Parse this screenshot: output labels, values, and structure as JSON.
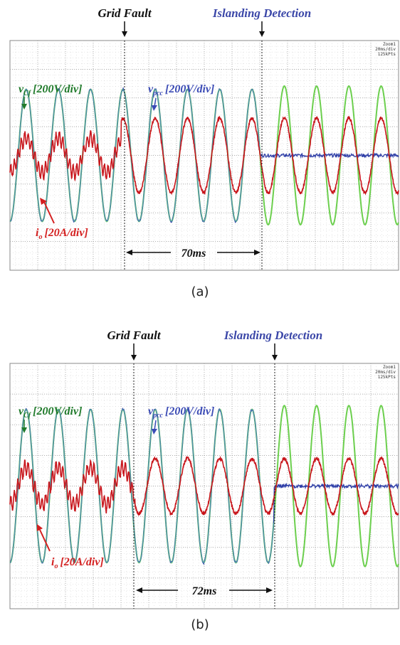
{
  "colors": {
    "grid_fault": "#111111",
    "islanding": "#3b47a8",
    "v_cf": "#1f7a2a",
    "v_pcc": "#3b4bb5",
    "i_o": "#d42020",
    "v_cf_trace": "#6ccf4e",
    "v_pcc_trace": "#2f3fa8",
    "i_o_trace": "#c8161c"
  },
  "chart_data": [
    {
      "type": "line",
      "panel_caption": "(a)",
      "scope_info": [
        "Zoom1",
        "20ms/div",
        "125kPts"
      ],
      "events": {
        "grid_fault": {
          "label": "Grid Fault",
          "t_div": 4.0
        },
        "islanding_detection": {
          "label": "Islanding Detection",
          "t_div": 9.0
        }
      },
      "duration_label": "70ms",
      "signals": [
        {
          "name": "v_Cf",
          "sub": "Cf",
          "base": "v",
          "label_rest": "[200V/div]",
          "amplitude_div": 2.3
        },
        {
          "name": "v_pcc",
          "sub": "pcc",
          "base": "v",
          "label_rest": "[200V/div]",
          "amplitude_div": 2.3,
          "after_islanding_div": 0.0
        },
        {
          "name": "i_o",
          "sub": "o",
          "base": "i",
          "label_rest": "[20A/div]",
          "amplitude_div_pre": 0.6,
          "amplitude_div_post": 1.3
        }
      ],
      "x_divisions": 14,
      "y_divisions": 8,
      "cycles_per_div": 0.86
    },
    {
      "type": "line",
      "panel_caption": "(b)",
      "scope_info": [
        "Zoom1",
        "20ms/div",
        "125kPts"
      ],
      "events": {
        "grid_fault": {
          "label": "Grid Fault",
          "t_div": 4.5
        },
        "islanding_detection": {
          "label": "Islanding Detection",
          "t_div": 9.5
        }
      },
      "duration_label": "72ms",
      "signals": [
        {
          "name": "v_Cf",
          "sub": "Cf",
          "base": "v",
          "label_rest": "[200V/div]",
          "amplitude_div": 2.5
        },
        {
          "name": "v_pcc",
          "sub": "pcc",
          "base": "v",
          "label_rest": "[200V/div]",
          "amplitude_div": 2.5,
          "after_islanding_div": 0.0
        },
        {
          "name": "i_o",
          "sub": "o",
          "base": "i",
          "label_rest": "[20A/div]",
          "amplitude_div_pre": 0.6,
          "amplitude_div_post": 0.9
        }
      ],
      "x_divisions": 14,
      "y_divisions": 8,
      "cycles_per_div": 0.86
    }
  ]
}
